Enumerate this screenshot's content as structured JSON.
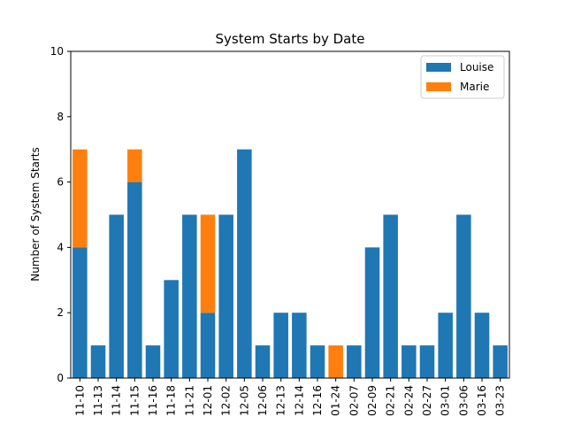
{
  "chart_data": {
    "type": "bar",
    "stacked": true,
    "title": "System Starts by Date",
    "xlabel": "",
    "ylabel": "Number of System Starts",
    "ylim": [
      0,
      10
    ],
    "yticks": [
      0,
      2,
      4,
      6,
      8,
      10
    ],
    "grid": false,
    "legend_position": "top-right",
    "categories": [
      "11-10",
      "11-13",
      "11-14",
      "11-15",
      "11-16",
      "11-18",
      "11-21",
      "12-01",
      "12-02",
      "12-05",
      "12-06",
      "12-13",
      "12-14",
      "12-16",
      "01-24",
      "02-07",
      "02-09",
      "02-21",
      "02-24",
      "02-27",
      "03-01",
      "03-06",
      "03-16",
      "03-23"
    ],
    "series": [
      {
        "name": "Louise",
        "color": "#1f77b4",
        "values": [
          4,
          1,
          5,
          6,
          1,
          3,
          5,
          2,
          5,
          7,
          1,
          2,
          2,
          1,
          0,
          1,
          4,
          5,
          1,
          1,
          2,
          5,
          2,
          1
        ]
      },
      {
        "name": "Marie",
        "color": "#ff7f0e",
        "values": [
          3,
          0,
          0,
          1,
          0,
          0,
          0,
          3,
          0,
          0,
          0,
          0,
          0,
          0,
          1,
          0,
          0,
          0,
          0,
          0,
          0,
          0,
          0,
          0
        ]
      }
    ]
  }
}
